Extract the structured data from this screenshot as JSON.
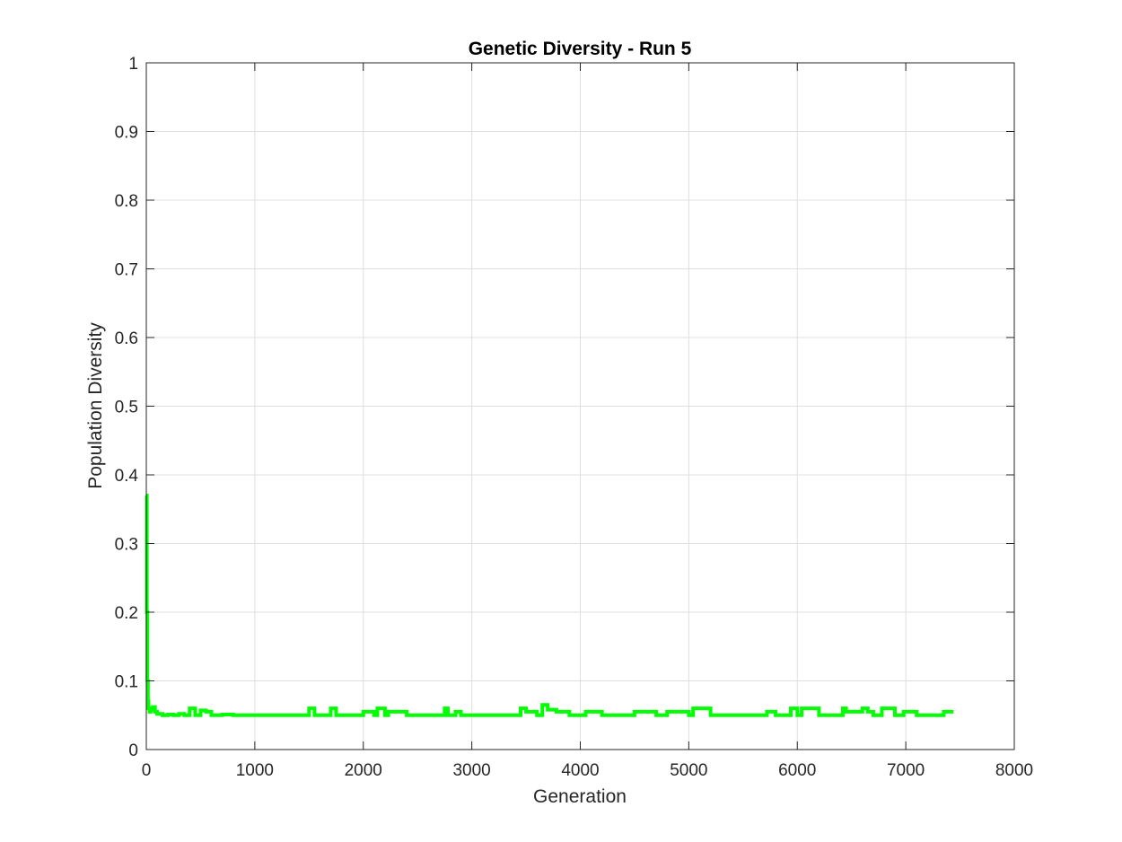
{
  "chart_data": {
    "type": "line",
    "title": "Genetic Diversity - Run 5",
    "xlabel": "Generation",
    "ylabel": "Population Diversity",
    "xlim": [
      0,
      8000
    ],
    "ylim": [
      0,
      1
    ],
    "xticks": [
      0,
      1000,
      2000,
      3000,
      4000,
      5000,
      6000,
      7000,
      8000
    ],
    "yticks": [
      0,
      0.1,
      0.2,
      0.3,
      0.4,
      0.5,
      0.6,
      0.7,
      0.8,
      0.9,
      1
    ],
    "ytick_labels": [
      "0",
      "0.1",
      "0.2",
      "0.3",
      "0.4",
      "0.5",
      "0.6",
      "0.7",
      "0.8",
      "0.9",
      "1"
    ],
    "grid": true,
    "line_color": "#00ff00",
    "series": [
      {
        "x": [
          0,
          5,
          10,
          15,
          20,
          30,
          40,
          60,
          80,
          100,
          150,
          200,
          250,
          300,
          350,
          400,
          450,
          500,
          550,
          600,
          700,
          800,
          1000,
          1200,
          1400,
          1500,
          1550,
          1700,
          1750,
          1900,
          2000,
          2100,
          2130,
          2200,
          2230,
          2340,
          2400,
          2600,
          2750,
          2780,
          2850,
          2900,
          3000,
          3200,
          3400,
          3450,
          3500,
          3550,
          3600,
          3650,
          3700,
          3780,
          3850,
          3900,
          4000,
          4050,
          4200,
          4400,
          4500,
          4560,
          4700,
          4800,
          5000,
          5040,
          5200,
          5400,
          5600,
          5720,
          5800,
          5940,
          6000,
          6040,
          6200,
          6400,
          6420,
          6450,
          6550,
          6600,
          6650,
          6700,
          6780,
          6900,
          6980,
          7100,
          7300,
          7350,
          7400,
          7440
        ],
        "y": [
          0.37,
          0.2,
          0.1,
          0.07,
          0.06,
          0.055,
          0.058,
          0.062,
          0.055,
          0.052,
          0.05,
          0.051,
          0.05,
          0.052,
          0.05,
          0.06,
          0.05,
          0.057,
          0.055,
          0.05,
          0.051,
          0.05,
          0.05,
          0.05,
          0.05,
          0.06,
          0.05,
          0.06,
          0.05,
          0.05,
          0.055,
          0.05,
          0.06,
          0.05,
          0.055,
          0.055,
          0.05,
          0.05,
          0.06,
          0.05,
          0.055,
          0.05,
          0.05,
          0.05,
          0.05,
          0.06,
          0.055,
          0.055,
          0.05,
          0.065,
          0.058,
          0.055,
          0.055,
          0.05,
          0.05,
          0.055,
          0.05,
          0.05,
          0.055,
          0.055,
          0.05,
          0.055,
          0.05,
          0.06,
          0.05,
          0.05,
          0.05,
          0.055,
          0.05,
          0.06,
          0.05,
          0.06,
          0.05,
          0.05,
          0.06,
          0.055,
          0.055,
          0.06,
          0.055,
          0.05,
          0.06,
          0.05,
          0.055,
          0.05,
          0.05,
          0.055,
          0.055,
          0.055
        ]
      }
    ]
  }
}
